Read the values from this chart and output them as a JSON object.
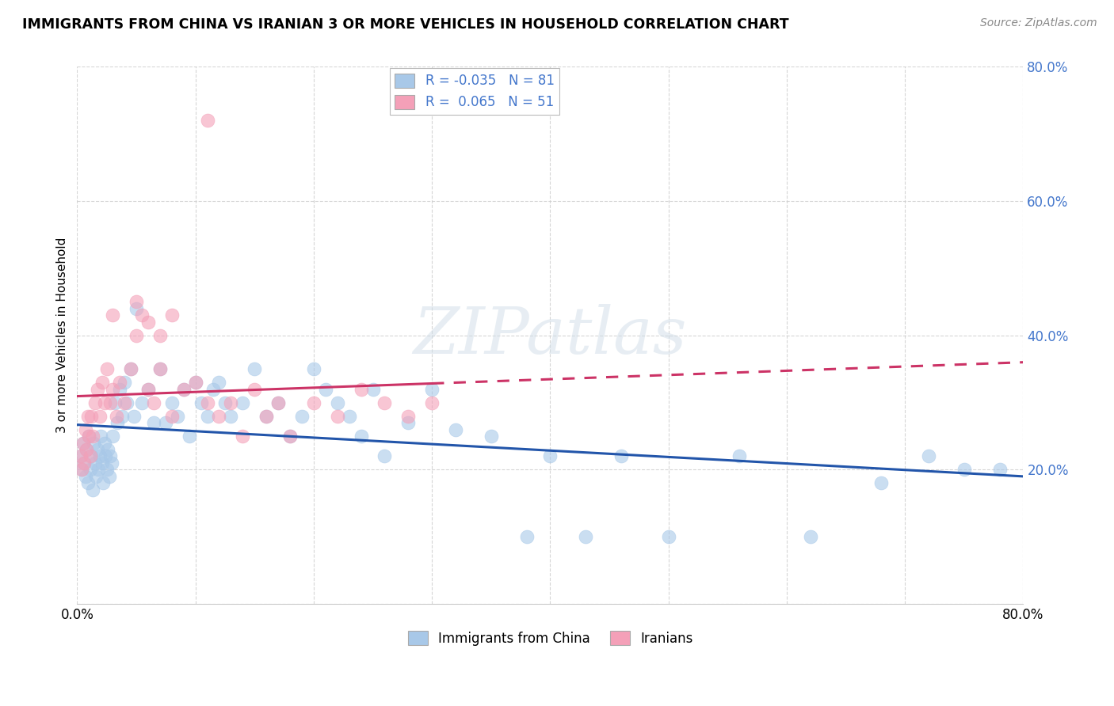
{
  "title": "IMMIGRANTS FROM CHINA VS IRANIAN 3 OR MORE VEHICLES IN HOUSEHOLD CORRELATION CHART",
  "source": "Source: ZipAtlas.com",
  "ylabel": "3 or more Vehicles in Household",
  "legend_label1": "Immigrants from China",
  "legend_label2": "Iranians",
  "R1": -0.035,
  "N1": 81,
  "R2": 0.065,
  "N2": 51,
  "xlim": [
    0.0,
    0.8
  ],
  "ylim": [
    0.0,
    0.8
  ],
  "color_china": "#a8c8e8",
  "color_iran": "#f4a0b8",
  "color_line_china": "#2255aa",
  "color_line_iran": "#cc3366",
  "background_color": "#ffffff",
  "watermark": "ZIPatlas",
  "china_x": [
    0.003,
    0.004,
    0.005,
    0.006,
    0.007,
    0.008,
    0.009,
    0.01,
    0.011,
    0.012,
    0.013,
    0.014,
    0.015,
    0.016,
    0.017,
    0.018,
    0.019,
    0.02,
    0.021,
    0.022,
    0.023,
    0.024,
    0.025,
    0.026,
    0.027,
    0.028,
    0.029,
    0.03,
    0.032,
    0.034,
    0.036,
    0.038,
    0.04,
    0.042,
    0.045,
    0.048,
    0.05,
    0.055,
    0.06,
    0.065,
    0.07,
    0.075,
    0.08,
    0.085,
    0.09,
    0.095,
    0.1,
    0.105,
    0.11,
    0.115,
    0.12,
    0.125,
    0.13,
    0.14,
    0.15,
    0.16,
    0.17,
    0.18,
    0.19,
    0.2,
    0.21,
    0.22,
    0.23,
    0.24,
    0.25,
    0.26,
    0.28,
    0.3,
    0.32,
    0.35,
    0.38,
    0.4,
    0.43,
    0.46,
    0.5,
    0.56,
    0.62,
    0.68,
    0.72,
    0.75,
    0.78
  ],
  "china_y": [
    0.22,
    0.2,
    0.24,
    0.21,
    0.19,
    0.23,
    0.18,
    0.25,
    0.2,
    0.22,
    0.17,
    0.24,
    0.21,
    0.19,
    0.23,
    0.2,
    0.22,
    0.25,
    0.21,
    0.18,
    0.24,
    0.22,
    0.2,
    0.23,
    0.19,
    0.22,
    0.21,
    0.25,
    0.3,
    0.27,
    0.32,
    0.28,
    0.33,
    0.3,
    0.35,
    0.28,
    0.44,
    0.3,
    0.32,
    0.27,
    0.35,
    0.27,
    0.3,
    0.28,
    0.32,
    0.25,
    0.33,
    0.3,
    0.28,
    0.32,
    0.33,
    0.3,
    0.28,
    0.3,
    0.35,
    0.28,
    0.3,
    0.25,
    0.28,
    0.35,
    0.32,
    0.3,
    0.28,
    0.25,
    0.32,
    0.22,
    0.27,
    0.32,
    0.26,
    0.25,
    0.1,
    0.22,
    0.1,
    0.22,
    0.1,
    0.22,
    0.1,
    0.18,
    0.22,
    0.2,
    0.2
  ],
  "iran_x": [
    0.003,
    0.004,
    0.005,
    0.006,
    0.007,
    0.008,
    0.009,
    0.01,
    0.011,
    0.012,
    0.013,
    0.015,
    0.017,
    0.019,
    0.021,
    0.023,
    0.025,
    0.028,
    0.03,
    0.033,
    0.036,
    0.04,
    0.045,
    0.05,
    0.055,
    0.06,
    0.065,
    0.07,
    0.08,
    0.09,
    0.1,
    0.11,
    0.12,
    0.13,
    0.14,
    0.15,
    0.16,
    0.17,
    0.18,
    0.2,
    0.22,
    0.24,
    0.26,
    0.28,
    0.3,
    0.11,
    0.05,
    0.08,
    0.06,
    0.07,
    0.03
  ],
  "iran_y": [
    0.22,
    0.2,
    0.24,
    0.21,
    0.26,
    0.23,
    0.28,
    0.25,
    0.22,
    0.28,
    0.25,
    0.3,
    0.32,
    0.28,
    0.33,
    0.3,
    0.35,
    0.3,
    0.32,
    0.28,
    0.33,
    0.3,
    0.35,
    0.4,
    0.43,
    0.32,
    0.3,
    0.35,
    0.28,
    0.32,
    0.33,
    0.3,
    0.28,
    0.3,
    0.25,
    0.32,
    0.28,
    0.3,
    0.25,
    0.3,
    0.28,
    0.32,
    0.3,
    0.28,
    0.3,
    0.72,
    0.45,
    0.43,
    0.42,
    0.4,
    0.43
  ]
}
